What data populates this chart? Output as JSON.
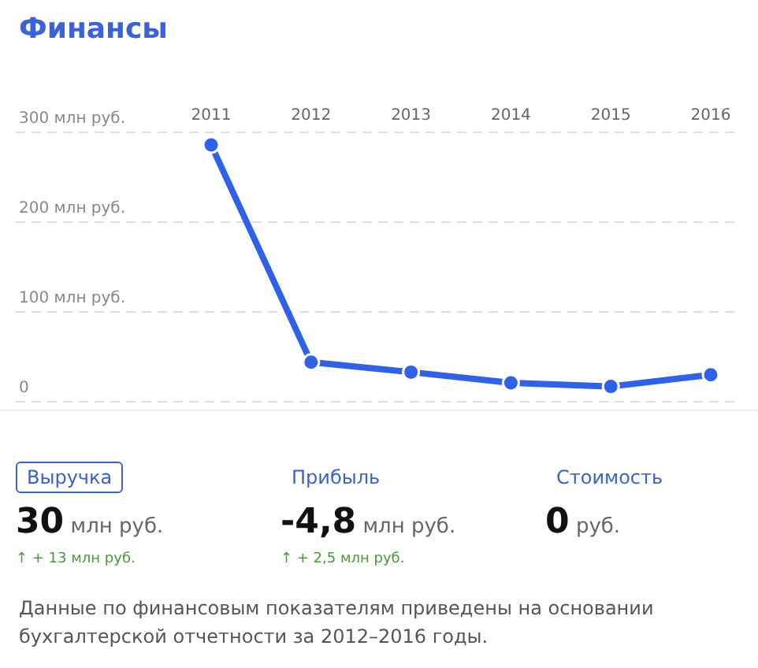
{
  "chart_data": {
    "type": "line",
    "title": "Финансы",
    "categories": [
      "2011",
      "2012",
      "2013",
      "2014",
      "2015",
      "2016"
    ],
    "series": [
      {
        "color": "#2f62e8",
        "values": [
          286,
          44,
          33,
          21,
          17,
          30
        ]
      }
    ],
    "ylim": [
      0,
      300
    ],
    "yticks": [
      {
        "value": 0,
        "label": "0"
      },
      {
        "value": 100,
        "label": "100 млн руб."
      },
      {
        "value": 200,
        "label": "200 млн руб."
      },
      {
        "value": 300,
        "label": "300 млн руб."
      }
    ],
    "grid": "y",
    "marker": "circle",
    "line_style": "solid",
    "legend": false,
    "annotations": [
      "Выручка",
      "30 млн руб.",
      "↑ + 13 млн руб.",
      "Прибыль",
      "-4,8 млн руб.",
      "↑ + 2,5 млн руб.",
      "Стоимость",
      "0 руб.",
      "Данные по финансовым показателям приведены на основании бухгалтерской отчетности за 2012–2016 годы."
    ]
  }
}
